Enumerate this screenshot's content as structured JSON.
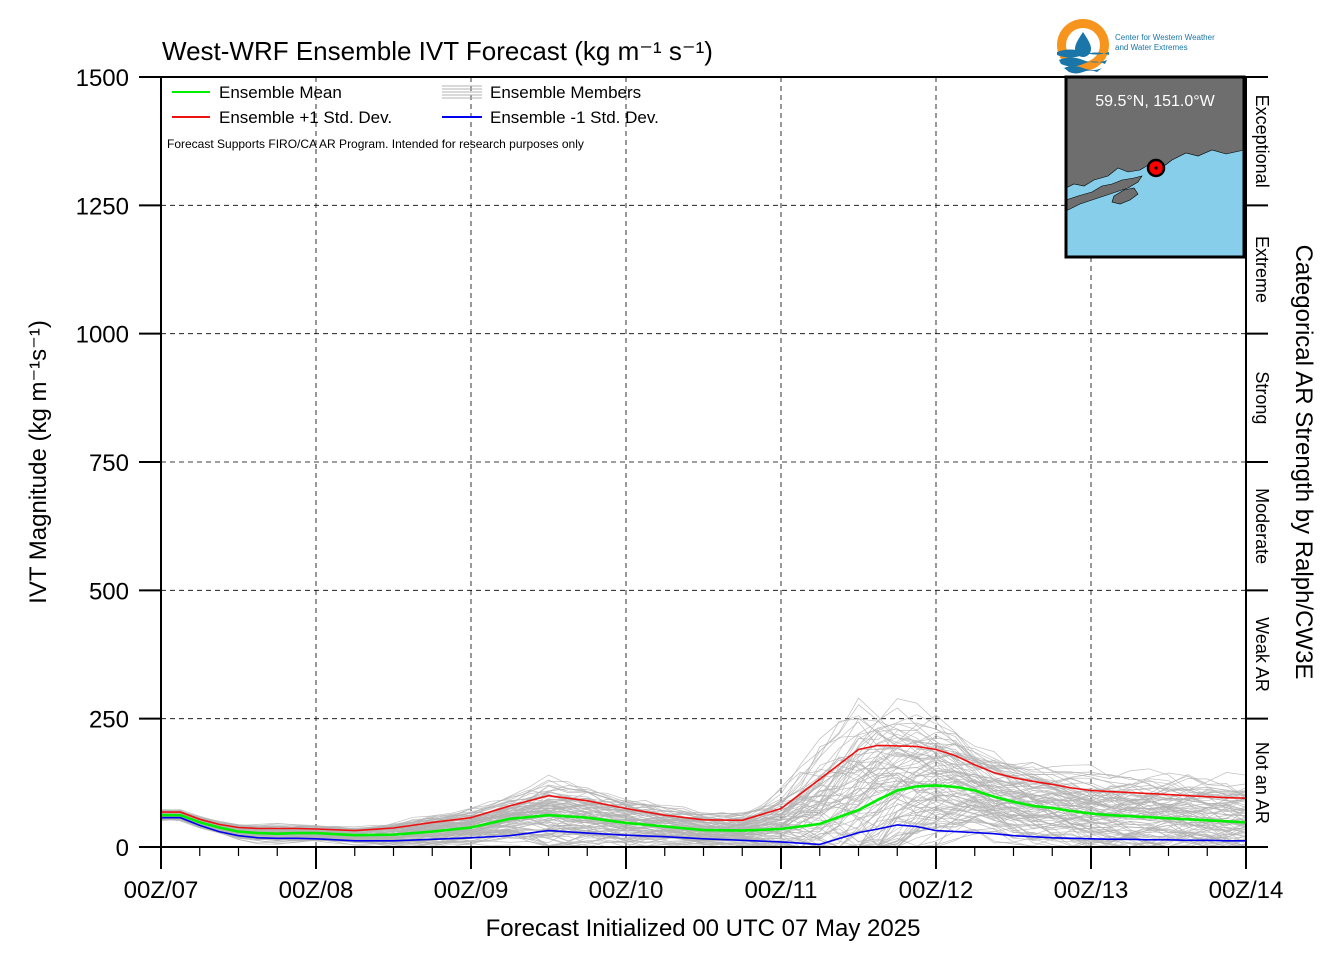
{
  "chart_data": {
    "type": "line",
    "title": "West-WRF Ensemble IVT Forecast (kg m⁻¹ s⁻¹)",
    "xlabel": "Forecast Initialized 00 UTC 07 May 2025",
    "ylabel": "IVT Magnitude (kg m⁻¹s⁻¹)",
    "right_label": "Categorical AR Strength by Ralph/CW3E",
    "note": "Forecast Supports FIRO/CA AR Program. Intended for research purposes only",
    "ylim": [
      0,
      1500
    ],
    "yticks": [
      "0",
      "250",
      "500",
      "750",
      "1000",
      "1250",
      "1500"
    ],
    "xlim_hours": [
      0,
      168
    ],
    "xticks": [
      "00Z/07",
      "00Z/08",
      "00Z/09",
      "00Z/10",
      "00Z/11",
      "00Z/12",
      "00Z/13",
      "00Z/14"
    ],
    "grid": true,
    "legend_position": "top-left",
    "legend": [
      {
        "label": "Ensemble Mean",
        "color": "#00ee00",
        "style": "line"
      },
      {
        "label": "Ensemble Members",
        "color": "#b3b3b3",
        "style": "multi"
      },
      {
        "label": "Ensemble +1 Std. Dev.",
        "color": "#ee1111",
        "style": "line"
      },
      {
        "label": "Ensemble -1 Std. Dev.",
        "color": "#0000ee",
        "style": "line"
      }
    ],
    "categories": [
      "Exceptional",
      "Extreme",
      "Strong",
      "Moderate",
      "Weak AR",
      "Not an AR"
    ],
    "category_bounds": [
      1500,
      1250,
      1000,
      750,
      500,
      250,
      0
    ],
    "series": [
      {
        "name": "Ensemble Mean",
        "color": "#00ee00",
        "x": [
          0,
          3,
          6,
          9,
          12,
          15,
          18,
          21,
          24,
          30,
          36,
          42,
          48,
          54,
          60,
          66,
          72,
          78,
          84,
          90,
          96,
          102,
          108,
          111,
          114,
          117,
          120,
          123,
          126,
          129,
          132,
          135,
          138,
          141,
          144,
          147,
          150,
          153,
          156,
          159,
          162,
          165,
          168
        ],
        "y": [
          62,
          62,
          48,
          38,
          30,
          27,
          26,
          27,
          27,
          23,
          24,
          30,
          38,
          55,
          62,
          57,
          47,
          40,
          33,
          32,
          35,
          45,
          72,
          92,
          110,
          118,
          120,
          117,
          110,
          98,
          88,
          80,
          76,
          70,
          65,
          62,
          60,
          58,
          56,
          54,
          52,
          50,
          48
        ]
      },
      {
        "name": "Ensemble +1 Std. Dev.",
        "color": "#ee1111",
        "x": [
          0,
          3,
          6,
          9,
          12,
          15,
          18,
          21,
          24,
          30,
          36,
          42,
          48,
          54,
          60,
          66,
          72,
          78,
          84,
          90,
          96,
          102,
          108,
          111,
          114,
          117,
          120,
          123,
          126,
          129,
          132,
          135,
          138,
          141,
          144,
          147,
          150,
          153,
          156,
          159,
          162,
          165,
          168
        ],
        "y": [
          68,
          68,
          54,
          44,
          38,
          36,
          36,
          36,
          35,
          32,
          37,
          48,
          57,
          80,
          100,
          90,
          75,
          62,
          53,
          52,
          75,
          132,
          190,
          198,
          197,
          196,
          190,
          178,
          160,
          145,
          135,
          128,
          122,
          115,
          110,
          108,
          106,
          104,
          102,
          100,
          98,
          96,
          95
        ]
      },
      {
        "name": "Ensemble -1 Std. Dev.",
        "color": "#0000ee",
        "x": [
          0,
          3,
          6,
          9,
          12,
          15,
          18,
          21,
          24,
          30,
          36,
          42,
          48,
          54,
          60,
          66,
          72,
          78,
          84,
          90,
          96,
          102,
          108,
          111,
          114,
          117,
          120,
          123,
          126,
          129,
          132,
          135,
          138,
          141,
          144,
          147,
          150,
          153,
          156,
          159,
          162,
          165,
          168
        ],
        "y": [
          57,
          57,
          42,
          30,
          22,
          18,
          17,
          17,
          16,
          12,
          12,
          15,
          18,
          22,
          32,
          27,
          23,
          20,
          16,
          13,
          10,
          5,
          28,
          35,
          43,
          40,
          32,
          30,
          28,
          26,
          22,
          20,
          18,
          17,
          16,
          15,
          15,
          14,
          14,
          13,
          13,
          12,
          12
        ]
      }
    ],
    "members": {
      "count": 100,
      "color": "#b3b3b3"
    },
    "inset_map": {
      "label": "59.5°N, 151.0°W",
      "land_color": "#6e6e6e",
      "water_color": "#87ceeb",
      "marker_color": "#ff0000"
    },
    "logo": {
      "text_line1": "Center for Western Weather",
      "text_line2": "and Water Extremes",
      "accent": "#f7941d",
      "primary": "#1a75a8"
    }
  }
}
